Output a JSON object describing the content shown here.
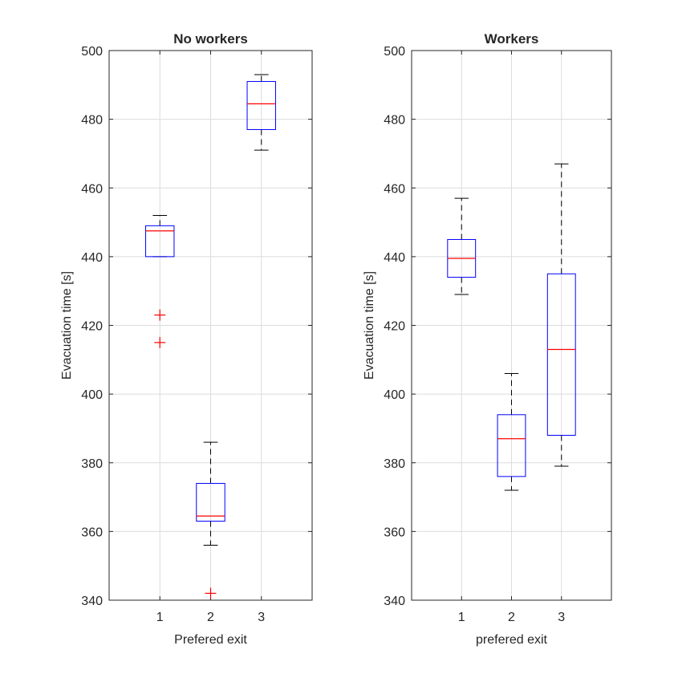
{
  "chart_data": [
    {
      "type": "box",
      "title": "No workers",
      "xlabel": "Prefered exit",
      "ylabel": "Evacuation time [s]",
      "ylim": [
        340,
        500
      ],
      "yticks": [
        340,
        360,
        380,
        400,
        420,
        440,
        460,
        480,
        500
      ],
      "categories": [
        "1",
        "2",
        "3"
      ],
      "grid": true,
      "boxes": [
        {
          "category": "1",
          "whisker_low": 440,
          "q1": 440,
          "median": 447.5,
          "q3": 449,
          "whisker_high": 452,
          "outliers": [
            423,
            415
          ]
        },
        {
          "category": "2",
          "whisker_low": 356,
          "q1": 363,
          "median": 364.5,
          "q3": 374,
          "whisker_high": 386,
          "outliers": [
            342
          ]
        },
        {
          "category": "3",
          "whisker_low": 471,
          "q1": 477,
          "median": 484.5,
          "q3": 491,
          "whisker_high": 493,
          "outliers": []
        }
      ]
    },
    {
      "type": "box",
      "title": "Workers",
      "xlabel": "prefered exit",
      "ylabel": "Evacuation time [s]",
      "ylim": [
        340,
        500
      ],
      "yticks": [
        340,
        360,
        380,
        400,
        420,
        440,
        460,
        480,
        500
      ],
      "categories": [
        "1",
        "2",
        "3"
      ],
      "grid": true,
      "boxes": [
        {
          "category": "1",
          "whisker_low": 429,
          "q1": 434,
          "median": 439.5,
          "q3": 445,
          "whisker_high": 457,
          "outliers": []
        },
        {
          "category": "2",
          "whisker_low": 372,
          "q1": 376,
          "median": 387,
          "q3": 394,
          "whisker_high": 406,
          "outliers": []
        },
        {
          "category": "3",
          "whisker_low": 379,
          "q1": 388,
          "median": 413,
          "q3": 435,
          "whisker_high": 467,
          "outliers": []
        }
      ]
    }
  ],
  "colors": {
    "box": "#0000ff",
    "median": "#ff0000",
    "whisker": "#000000",
    "outlier": "#ff0000",
    "grid": "#dcdcdc",
    "axis": "#262626"
  }
}
